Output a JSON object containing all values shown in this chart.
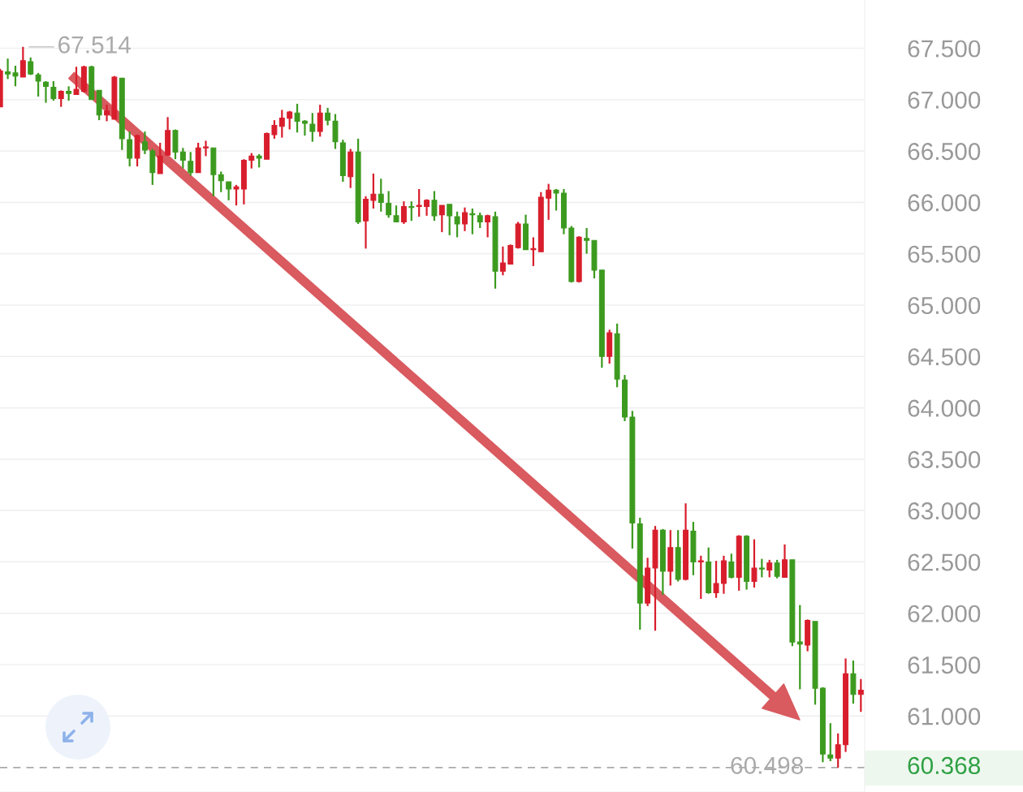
{
  "chart_data": {
    "type": "candlestick",
    "categories": [
      null,
      null,
      null,
      null,
      null,
      null,
      null,
      null,
      null,
      null,
      null,
      null,
      null,
      null,
      null,
      null,
      null,
      null,
      null,
      null,
      null,
      null,
      null,
      null,
      null,
      null,
      null,
      null,
      null,
      null,
      null,
      null,
      null,
      null,
      null,
      null,
      null,
      null,
      null,
      null,
      null,
      null,
      null,
      null,
      null,
      null,
      null,
      null,
      null,
      null,
      null,
      null,
      null,
      null,
      null,
      null,
      null,
      null,
      null,
      null,
      null,
      null,
      null,
      null,
      null,
      null,
      null,
      null,
      null,
      null,
      null,
      null,
      null,
      null,
      null,
      null,
      null,
      null,
      null,
      null,
      null,
      null,
      null,
      null,
      null,
      null,
      null,
      null,
      null,
      null,
      null,
      null,
      null,
      null,
      null,
      null,
      null,
      null,
      null,
      null,
      null,
      null,
      null,
      null,
      null,
      null,
      null,
      null,
      null,
      null,
      null,
      null,
      null,
      null
    ],
    "ohlc": [
      [
        66.93,
        67.3,
        66.93,
        67.28
      ],
      [
        67.27,
        67.4,
        67.2,
        67.25
      ],
      [
        67.26,
        67.33,
        67.13,
        67.23
      ],
      [
        67.22,
        67.514,
        67.22,
        67.38
      ],
      [
        67.37,
        67.41,
        67.24,
        67.25
      ],
      [
        67.24,
        67.26,
        67.03,
        67.18
      ],
      [
        67.17,
        67.18,
        66.97,
        67.13
      ],
      [
        67.12,
        67.18,
        66.99,
        67.01
      ],
      [
        67.01,
        67.09,
        66.93,
        67.08
      ],
      [
        67.08,
        67.13,
        66.99,
        67.06
      ],
      [
        67.05,
        67.32,
        67.05,
        67.1
      ],
      [
        67.08,
        67.33,
        67.07,
        67.32
      ],
      [
        67.32,
        67.33,
        67.0,
        67.0
      ],
      [
        67.09,
        67.09,
        66.8,
        66.85
      ],
      [
        66.85,
        66.95,
        66.79,
        66.89
      ],
      [
        66.81,
        67.23,
        66.81,
        67.22
      ],
      [
        67.21,
        67.21,
        66.51,
        66.62
      ],
      [
        66.61,
        66.69,
        66.35,
        66.43
      ],
      [
        66.43,
        66.66,
        66.35,
        66.65
      ],
      [
        66.59,
        66.69,
        66.47,
        66.51
      ],
      [
        66.5,
        66.52,
        66.17,
        66.29
      ],
      [
        66.28,
        66.58,
        66.28,
        66.45
      ],
      [
        66.46,
        66.83,
        66.46,
        66.7
      ],
      [
        66.7,
        66.71,
        66.42,
        66.49
      ],
      [
        66.49,
        66.53,
        66.33,
        66.41
      ],
      [
        66.4,
        66.49,
        66.26,
        66.29
      ],
      [
        66.29,
        66.58,
        66.29,
        66.53
      ],
      [
        66.53,
        66.6,
        66.45,
        66.54
      ],
      [
        66.53,
        66.53,
        66.06,
        66.27
      ],
      [
        66.27,
        66.3,
        66.1,
        66.21
      ],
      [
        66.2,
        66.2,
        66.02,
        66.13
      ],
      [
        66.13,
        66.17,
        65.97,
        66.15
      ],
      [
        66.13,
        66.42,
        65.98,
        66.41
      ],
      [
        66.41,
        66.48,
        66.33,
        66.45
      ],
      [
        66.45,
        66.47,
        66.34,
        66.43
      ],
      [
        66.42,
        66.68,
        66.42,
        66.67
      ],
      [
        66.66,
        66.8,
        66.62,
        66.75
      ],
      [
        66.74,
        66.9,
        66.63,
        66.82
      ],
      [
        66.82,
        66.89,
        66.71,
        66.88
      ],
      [
        66.87,
        66.96,
        66.68,
        66.79
      ],
      [
        66.79,
        66.8,
        66.65,
        66.77
      ],
      [
        66.76,
        66.87,
        66.59,
        66.69
      ],
      [
        66.69,
        66.95,
        66.64,
        66.87
      ],
      [
        66.87,
        66.92,
        66.75,
        66.8
      ],
      [
        66.79,
        66.86,
        66.52,
        66.59
      ],
      [
        66.58,
        66.61,
        66.2,
        66.26
      ],
      [
        66.25,
        66.52,
        66.14,
        66.49
      ],
      [
        66.49,
        66.62,
        65.79,
        65.81
      ],
      [
        65.82,
        66.06,
        65.55,
        66.03
      ],
      [
        66.02,
        66.28,
        65.94,
        66.08
      ],
      [
        66.08,
        66.23,
        65.91,
        66.0
      ],
      [
        65.99,
        66.11,
        65.85,
        65.88
      ],
      [
        65.87,
        65.97,
        65.81,
        65.81
      ],
      [
        65.81,
        66.01,
        65.79,
        65.96
      ],
      [
        65.96,
        66.01,
        65.82,
        65.95
      ],
      [
        65.96,
        66.13,
        65.86,
        65.97
      ],
      [
        65.96,
        66.03,
        65.87,
        66.02
      ],
      [
        66.02,
        66.11,
        65.82,
        65.87
      ],
      [
        65.88,
        65.97,
        65.71,
        65.97
      ],
      [
        65.98,
        65.98,
        65.68,
        65.87
      ],
      [
        65.86,
        65.91,
        65.66,
        65.79
      ],
      [
        65.79,
        65.95,
        65.72,
        65.9
      ],
      [
        65.89,
        65.94,
        65.69,
        65.88
      ],
      [
        65.87,
        65.9,
        65.75,
        65.81
      ],
      [
        65.81,
        65.88,
        65.66,
        65.87
      ],
      [
        65.86,
        65.91,
        65.16,
        65.33
      ],
      [
        65.33,
        65.57,
        65.29,
        65.41
      ],
      [
        65.4,
        65.59,
        65.4,
        65.58
      ],
      [
        65.56,
        65.81,
        65.55,
        65.79
      ],
      [
        65.79,
        65.88,
        65.54,
        65.54
      ],
      [
        65.54,
        65.66,
        65.38,
        65.55
      ],
      [
        65.52,
        66.1,
        65.52,
        66.05
      ],
      [
        66.04,
        66.18,
        65.83,
        66.12
      ],
      [
        66.12,
        66.13,
        65.92,
        66.09
      ],
      [
        66.09,
        66.13,
        65.69,
        65.75
      ],
      [
        65.75,
        65.77,
        65.22,
        65.23
      ],
      [
        65.23,
        65.67,
        65.22,
        65.66
      ],
      [
        65.65,
        65.75,
        65.5,
        65.63
      ],
      [
        65.63,
        65.63,
        65.26,
        65.34
      ],
      [
        65.34,
        65.34,
        64.39,
        64.5
      ],
      [
        64.5,
        64.76,
        64.43,
        64.73
      ],
      [
        64.72,
        64.82,
        64.2,
        64.28
      ],
      [
        64.27,
        64.32,
        63.87,
        63.91
      ],
      [
        63.91,
        63.97,
        62.63,
        62.88
      ],
      [
        62.87,
        62.93,
        61.84,
        62.1
      ],
      [
        62.1,
        62.54,
        62.07,
        62.44
      ],
      [
        62.44,
        62.85,
        61.83,
        62.81
      ],
      [
        62.81,
        62.82,
        62.18,
        62.41
      ],
      [
        62.41,
        62.81,
        62.27,
        62.64
      ],
      [
        62.64,
        62.81,
        62.31,
        62.33
      ],
      [
        62.33,
        63.07,
        62.32,
        62.81
      ],
      [
        62.8,
        62.89,
        62.37,
        62.5
      ],
      [
        62.5,
        62.56,
        62.14,
        62.51
      ],
      [
        62.5,
        62.64,
        62.19,
        62.2
      ],
      [
        62.2,
        62.51,
        62.15,
        62.29
      ],
      [
        62.29,
        62.56,
        62.19,
        62.51
      ],
      [
        62.5,
        62.58,
        62.34,
        62.35
      ],
      [
        62.35,
        62.76,
        62.22,
        62.75
      ],
      [
        62.75,
        62.76,
        62.23,
        62.31
      ],
      [
        62.31,
        62.72,
        62.25,
        62.44
      ],
      [
        62.44,
        62.53,
        62.35,
        62.43
      ],
      [
        62.42,
        62.52,
        62.35,
        62.49
      ],
      [
        62.49,
        62.52,
        62.34,
        62.36
      ],
      [
        62.35,
        62.67,
        62.35,
        62.52
      ],
      [
        62.52,
        62.52,
        61.68,
        61.72
      ],
      [
        61.72,
        62.08,
        61.26,
        61.7
      ],
      [
        61.69,
        61.94,
        61.63,
        61.93
      ],
      [
        61.92,
        61.92,
        61.11,
        61.27
      ],
      [
        61.27,
        61.28,
        60.55,
        60.63
      ],
      [
        60.62,
        60.93,
        60.56,
        60.59
      ],
      [
        60.59,
        60.83,
        60.498,
        60.72
      ],
      [
        60.72,
        61.56,
        60.65,
        61.41
      ],
      [
        61.41,
        61.54,
        61.12,
        61.21
      ],
      [
        61.21,
        61.36,
        61.04,
        61.25
      ]
    ],
    "colors": [
      "#d81e2c",
      "#3c9a1f",
      "#3c9a1f",
      "#d81e2c",
      "#3c9a1f",
      "#3c9a1f",
      "#3c9a1f",
      "#3c9a1f",
      "#d81e2c",
      "#3c9a1f",
      "#d81e2c",
      "#d81e2c",
      "#3c9a1f",
      "#3c9a1f",
      "#d81e2c",
      "#d81e2c",
      "#3c9a1f",
      "#3c9a1f",
      "#d81e2c",
      "#3c9a1f",
      "#3c9a1f",
      "#d81e2c",
      "#d81e2c",
      "#3c9a1f",
      "#3c9a1f",
      "#3c9a1f",
      "#d81e2c",
      "#d81e2c",
      "#3c9a1f",
      "#3c9a1f",
      "#3c9a1f",
      "#d81e2c",
      "#d81e2c",
      "#d81e2c",
      "#3c9a1f",
      "#d81e2c",
      "#d81e2c",
      "#d81e2c",
      "#d81e2c",
      "#3c9a1f",
      "#3c9a1f",
      "#3c9a1f",
      "#d81e2c",
      "#3c9a1f",
      "#3c9a1f",
      "#3c9a1f",
      "#d81e2c",
      "#3c9a1f",
      "#d81e2c",
      "#d81e2c",
      "#3c9a1f",
      "#3c9a1f",
      "#3c9a1f",
      "#d81e2c",
      "#3c9a1f",
      "#d81e2c",
      "#d81e2c",
      "#3c9a1f",
      "#d81e2c",
      "#3c9a1f",
      "#3c9a1f",
      "#d81e2c",
      "#3c9a1f",
      "#3c9a1f",
      "#d81e2c",
      "#3c9a1f",
      "#d81e2c",
      "#d81e2c",
      "#d81e2c",
      "#3c9a1f",
      "#d81e2c",
      "#d81e2c",
      "#d81e2c",
      "#3c9a1f",
      "#3c9a1f",
      "#3c9a1f",
      "#d81e2c",
      "#3c9a1f",
      "#3c9a1f",
      "#3c9a1f",
      "#d81e2c",
      "#3c9a1f",
      "#3c9a1f",
      "#3c9a1f",
      "#3c9a1f",
      "#d81e2c",
      "#d81e2c",
      "#3c9a1f",
      "#d81e2c",
      "#3c9a1f",
      "#d81e2c",
      "#3c9a1f",
      "#d81e2c",
      "#3c9a1f",
      "#d81e2c",
      "#d81e2c",
      "#3c9a1f",
      "#d81e2c",
      "#3c9a1f",
      "#d81e2c",
      "#3c9a1f",
      "#d81e2c",
      "#3c9a1f",
      "#d81e2c",
      "#3c9a1f",
      "#3c9a1f",
      "#d81e2c",
      "#3c9a1f",
      "#3c9a1f",
      "#3c9a1f",
      "#d81e2c",
      "#d81e2c",
      "#3c9a1f",
      "#d81e2c"
    ],
    "ylim": [
      60.26,
      67.97
    ],
    "yticks": [
      {
        "value": 61.0,
        "label": "61.000"
      },
      {
        "value": 61.5,
        "label": "61.500"
      },
      {
        "value": 62.0,
        "label": "62.000"
      },
      {
        "value": 62.5,
        "label": "62.500"
      },
      {
        "value": 63.0,
        "label": "63.000"
      },
      {
        "value": 63.5,
        "label": "63.500"
      },
      {
        "value": 64.0,
        "label": "64.000"
      },
      {
        "value": 64.5,
        "label": "64.500"
      },
      {
        "value": 65.0,
        "label": "65.000"
      },
      {
        "value": 65.5,
        "label": "65.500"
      },
      {
        "value": 66.0,
        "label": "66.000"
      },
      {
        "value": 66.5,
        "label": "66.500"
      },
      {
        "value": 67.0,
        "label": "67.000"
      },
      {
        "value": 67.5,
        "label": "67.500"
      }
    ],
    "grid": "y",
    "tick_labels": "y",
    "ref_lines": [
      {
        "axis": "y",
        "value": 60.498,
        "label": "60.498",
        "color": "#aaaaaa",
        "line_style": "dashed"
      }
    ],
    "annotations": [
      "67.514",
      "60.368"
    ]
  }
}
